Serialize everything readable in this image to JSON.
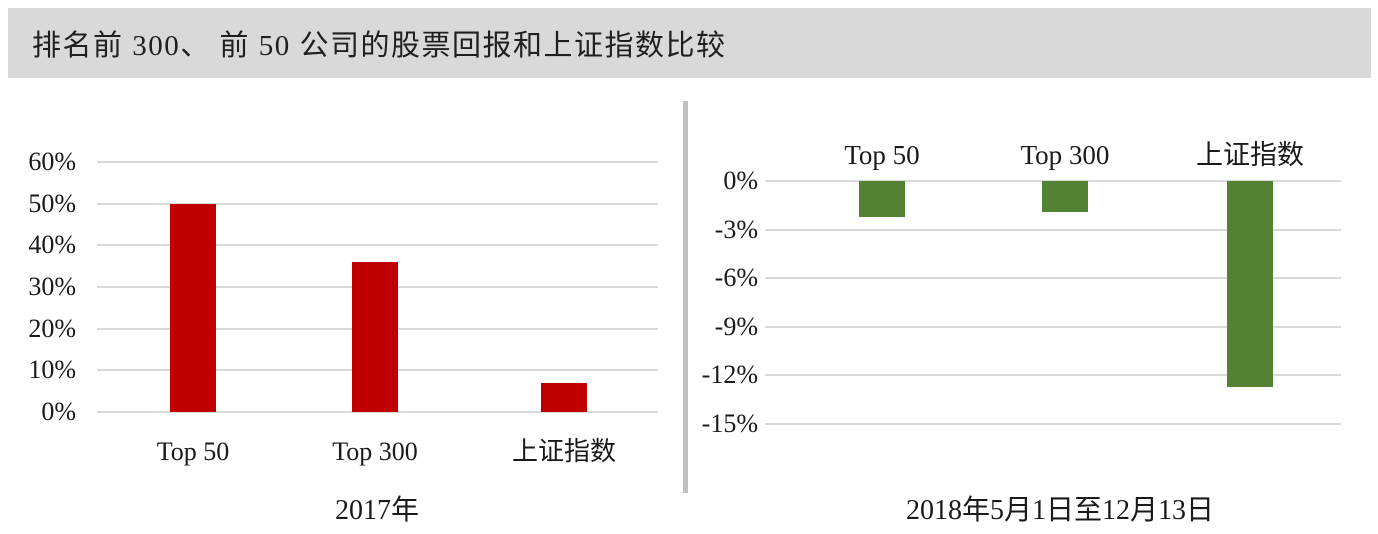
{
  "title": "排名前 300、 前 50 公司的股票回报和上证指数比较",
  "colors": {
    "title_bar_bg": "#d9d9d9",
    "red_bar": "#c00000",
    "green_bar": "#548235",
    "gridline": "#d9d9d9",
    "divider": "#bfbfbf",
    "text": "#1a1a1a"
  },
  "chart_data": [
    {
      "type": "bar",
      "panel": "left",
      "categories": [
        "Top 50",
        "Top 300",
        "上证指数"
      ],
      "keys": [
        "top-50",
        "top-300",
        "sse-index"
      ],
      "values": [
        50,
        36,
        7
      ],
      "unit": "%",
      "xlabel": "2017年",
      "ylim": [
        0,
        60
      ],
      "ytick_labels": [
        "60%",
        "50%",
        "40%",
        "30%",
        "20%",
        "10%",
        "0%"
      ],
      "bar_color": "#c00000",
      "grid": true,
      "legend": "none",
      "category_labels_position": "below"
    },
    {
      "type": "bar",
      "panel": "right",
      "categories": [
        "Top 50",
        "Top 300",
        "上证指数"
      ],
      "keys": [
        "top-50",
        "top-300",
        "sse-index"
      ],
      "values": [
        -2.2,
        -1.9,
        -12.7
      ],
      "unit": "%",
      "xlabel": "2018年5月1日至12月13日",
      "ylim": [
        -15,
        0
      ],
      "ytick_labels": [
        "0%",
        "-3%",
        "-6%",
        "-9%",
        "-12%",
        "-15%"
      ],
      "bar_color": "#548235",
      "grid": true,
      "legend": "none",
      "category_labels_position": "above"
    }
  ]
}
